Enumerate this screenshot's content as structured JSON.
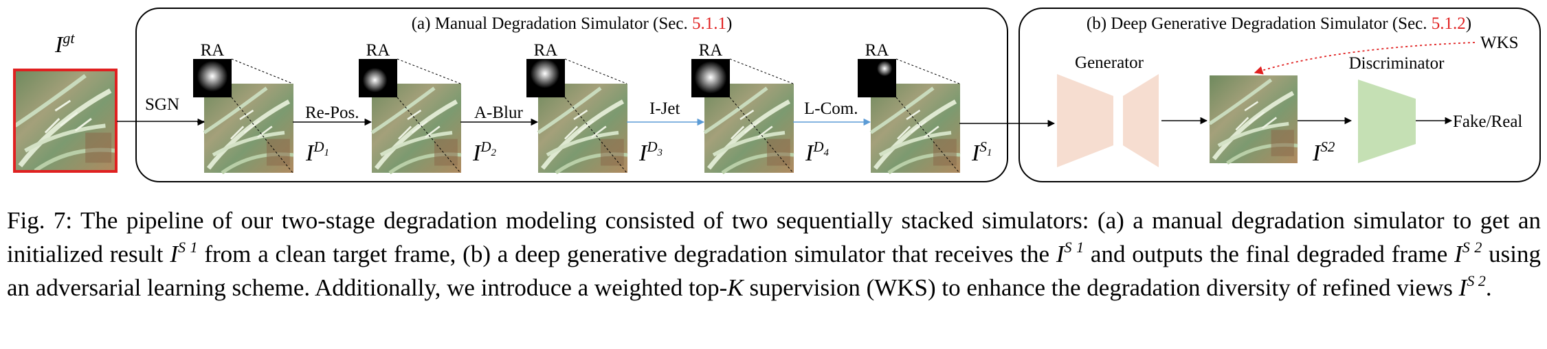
{
  "panel_a": {
    "title_text": "(a) Manual Degradation Simulator (Sec. ",
    "title_ref": "5.1.1",
    "title_close": ")"
  },
  "panel_b": {
    "title_text": "(b) Deep Generative Degradation Simulator (Sec. ",
    "title_ref": "5.1.2",
    "title_close": ")",
    "generator_label": "Generator",
    "discriminator_label": "Discriminator",
    "wks_label": "WKS",
    "output_label": "Fake/Real"
  },
  "input": {
    "symbol": "I",
    "sup": "gt"
  },
  "ra_label": "RA",
  "stages": [
    {
      "op": "SGN",
      "out_base": "I",
      "out_sup": "D",
      "out_sub": "1"
    },
    {
      "op": "Re-Pos.",
      "out_base": "I",
      "out_sup": "D",
      "out_sub": "2"
    },
    {
      "op": "A-Blur",
      "out_base": "I",
      "out_sup": "D",
      "out_sub": "3"
    },
    {
      "op": "I-Jet",
      "out_base": "I",
      "out_sup": "D",
      "out_sub": "4"
    },
    {
      "op": "L-Com.",
      "out_base": "I",
      "out_sup": "S",
      "out_sub": "1"
    }
  ],
  "refined": {
    "base": "I",
    "sup": "S2"
  },
  "colors": {
    "accent_red": "#e02020",
    "generator_fill": "#f6ddd0",
    "discriminator_fill": "#c5e0b4",
    "arrow_blue": "#5b9bd5"
  },
  "caption": {
    "p1": "Fig. 7: The pipeline of our two-stage degradation modeling consisted of two sequentially stacked simulators: (a) a manual degradation simulator to get an initialized result ",
    "s1_base": "I",
    "s1_sup": "S 1",
    "p2": " from a clean target frame, (b) a deep generative degradation simulator that receives the ",
    "s2_base": "I",
    "s2_sup": "S 1",
    "p3": " and outputs the final degraded frame ",
    "s3_base": "I",
    "s3_sup": "S 2",
    "p4": " using an adversarial learning scheme. Additionally, we introduce a weighted top-",
    "k": "K",
    "p5": " supervision (WKS) to enhance the degradation diversity of refined views ",
    "s4_base": "I",
    "s4_sup": "S 2",
    "p6": "."
  }
}
